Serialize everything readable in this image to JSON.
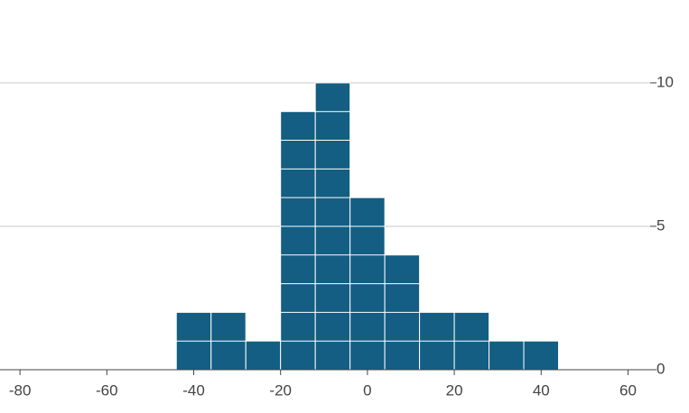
{
  "chart_data": {
    "type": "histogram",
    "bins": [
      -44,
      -36,
      -28,
      -20,
      -12,
      -4,
      4,
      12,
      20,
      28,
      36,
      44
    ],
    "values": [
      2,
      2,
      1,
      9,
      10,
      6,
      4,
      2,
      2,
      1,
      1
    ],
    "color": "#135e82",
    "xlim": [
      -84.6,
      65.1
    ],
    "xticks": [
      -80,
      -60,
      -40,
      -20,
      0,
      20,
      40,
      60
    ],
    "ylim": [
      0,
      10.5
    ],
    "yticks": [
      0,
      5,
      10
    ],
    "grid": true
  }
}
